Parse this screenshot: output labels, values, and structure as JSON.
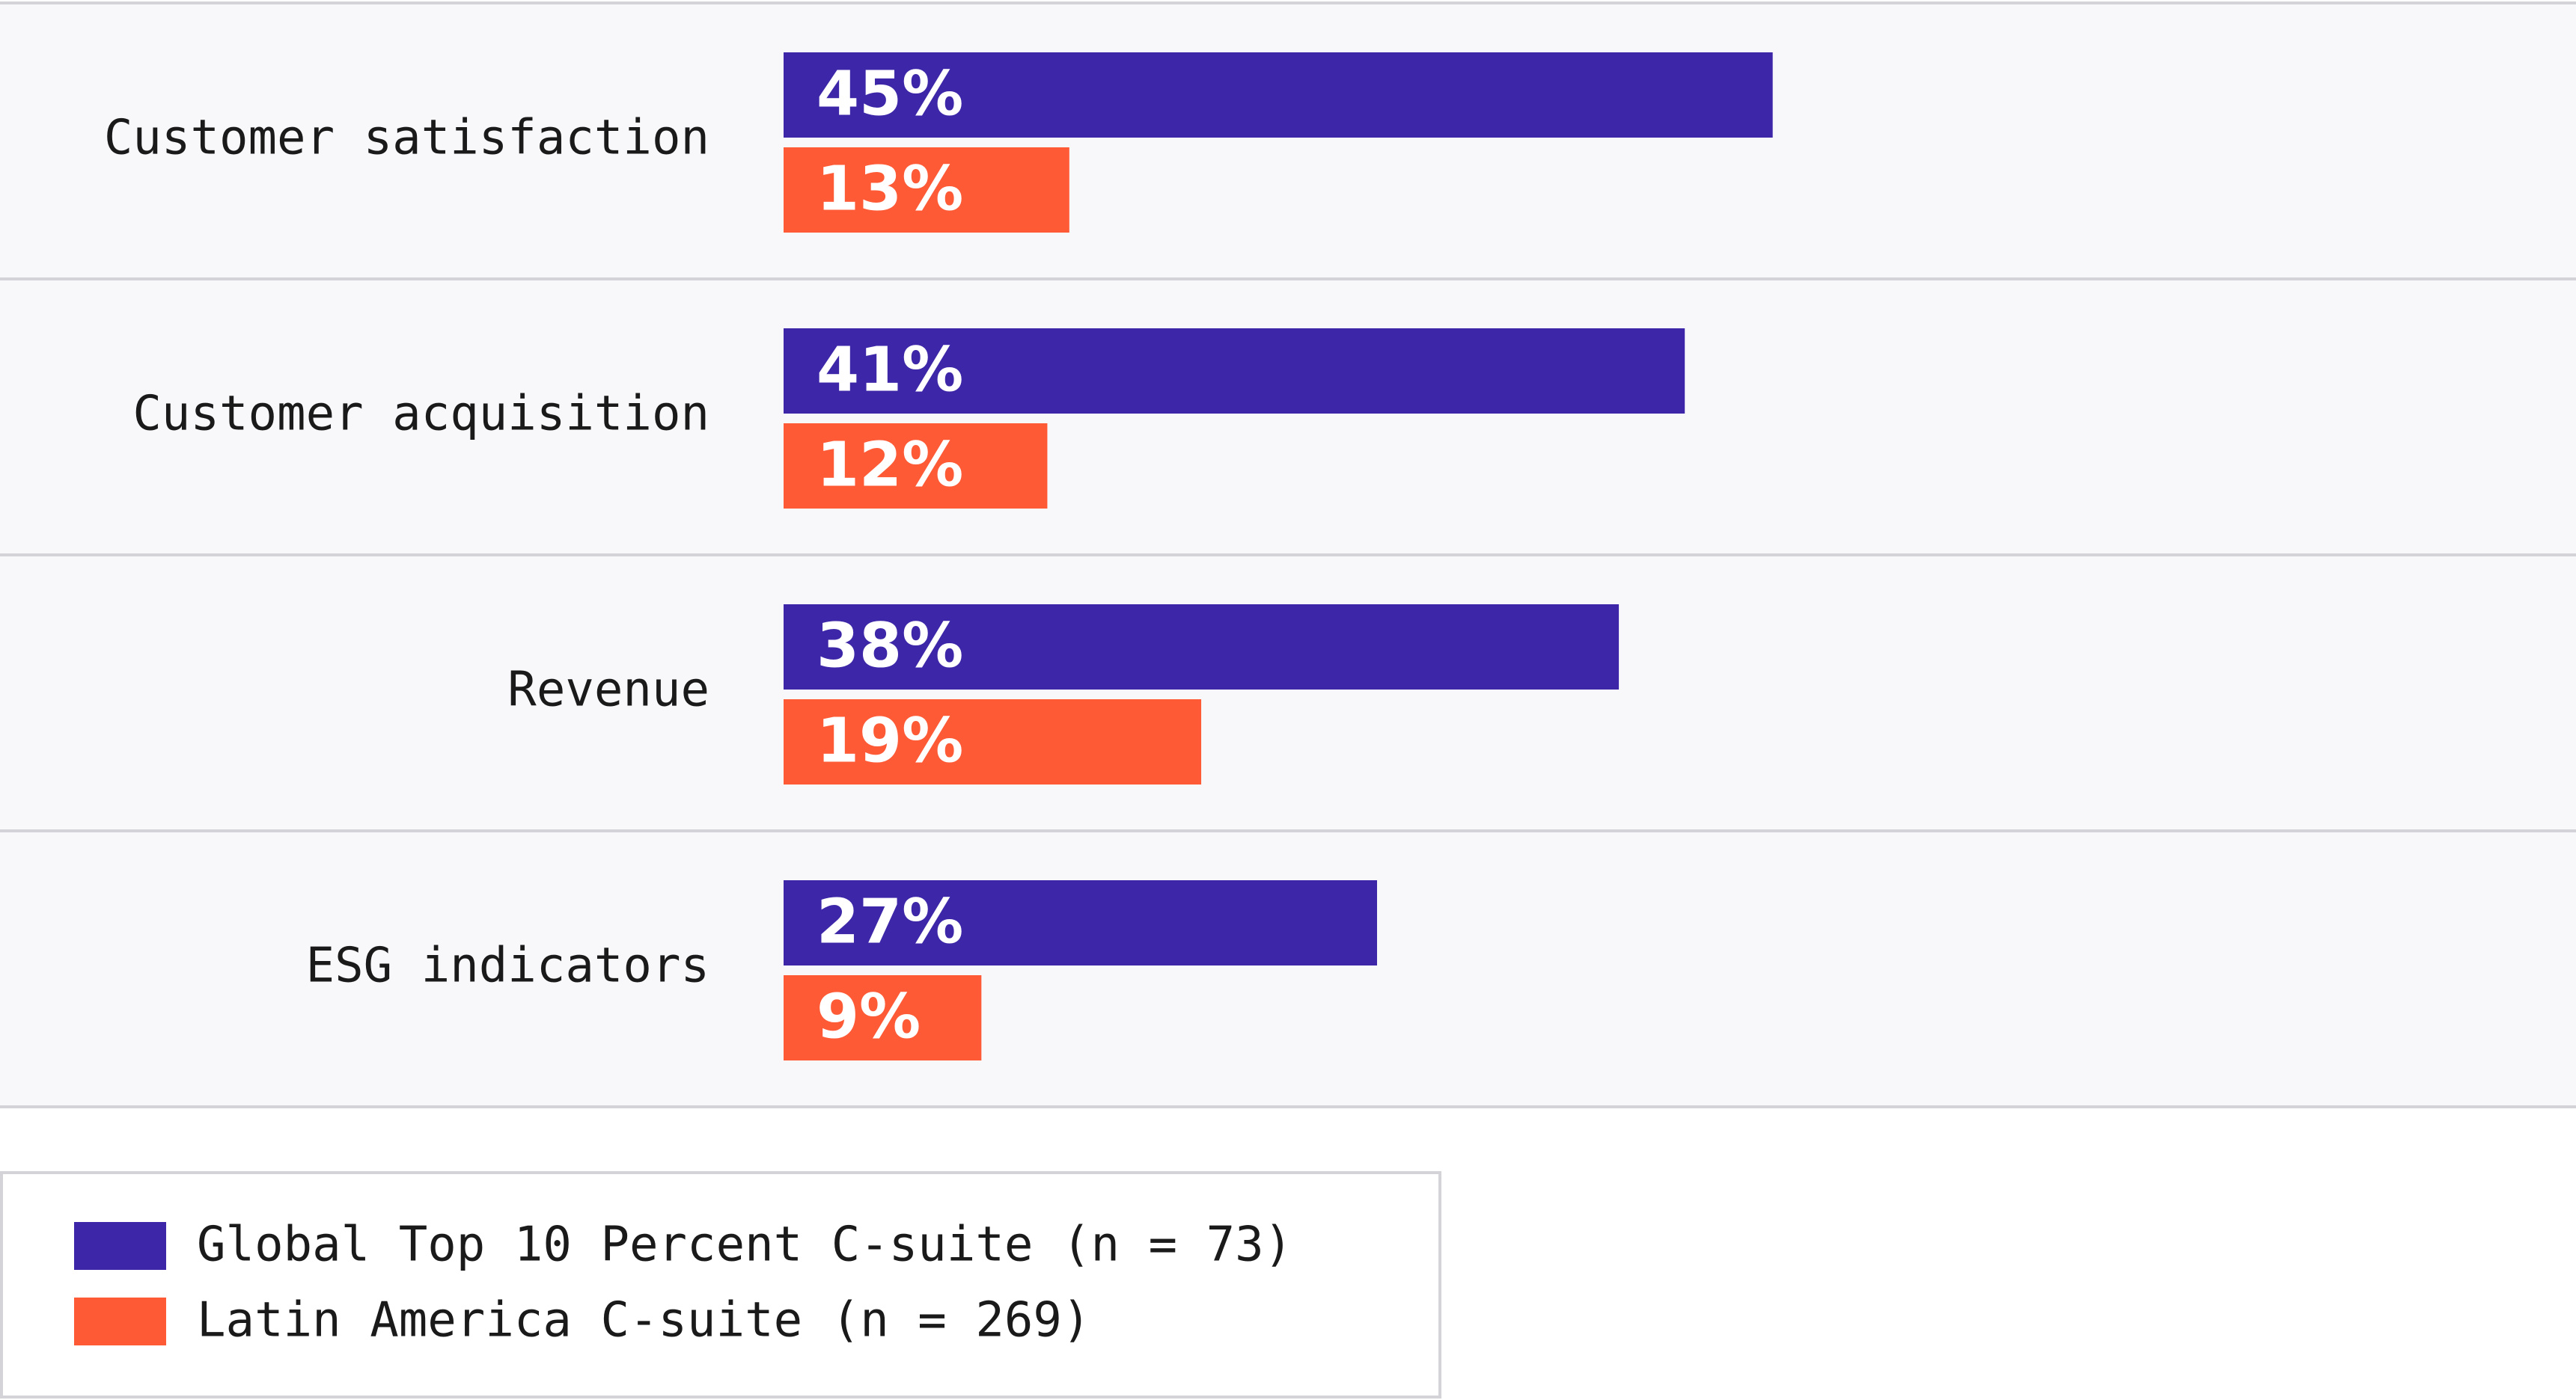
{
  "chart_data": {
    "type": "bar",
    "orientation": "horizontal",
    "categories": [
      "Customer satisfaction",
      "Customer acquisition",
      "Revenue",
      "ESG indicators"
    ],
    "series": [
      {
        "name": "Global Top 10 Percent C-suite (n = 73)",
        "color": "#3d27a8",
        "values": [
          45,
          41,
          38,
          27
        ],
        "value_labels": [
          "45%",
          "41%",
          "38%",
          "27%"
        ]
      },
      {
        "name": "Latin America C-suite (n = 269)",
        "color": "#ff5a36",
        "values": [
          13,
          12,
          19,
          9
        ],
        "value_labels": [
          "13%",
          "12%",
          "19%",
          "9%"
        ]
      }
    ]
  }
}
